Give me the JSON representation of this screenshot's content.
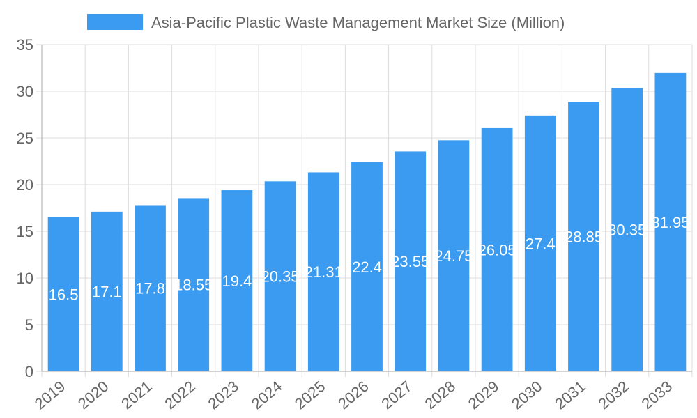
{
  "chart_data": {
    "type": "bar",
    "title": "",
    "xlabel": "",
    "ylabel": "",
    "legend": {
      "position": "top",
      "entries": [
        "Asia-Pacific Plastic Waste Management Market Size (Million)"
      ]
    },
    "categories": [
      "2019",
      "2020",
      "2021",
      "2022",
      "2023",
      "2024",
      "2025",
      "2026",
      "2027",
      "2028",
      "2029",
      "2030",
      "2031",
      "2032",
      "2033"
    ],
    "series": [
      {
        "name": "Asia-Pacific Plastic Waste Management Market Size (Million)",
        "values": [
          16.5,
          17.1,
          17.8,
          18.55,
          19.4,
          20.35,
          21.31,
          22.4,
          23.55,
          24.75,
          26.05,
          27.4,
          28.85,
          30.35,
          31.95
        ],
        "color": "#3a9bf0"
      }
    ],
    "data_labels": [
      "16.5",
      "17.1",
      "17.8",
      "18.55",
      "19.4",
      "20.35",
      "21.31",
      "22.4",
      "23.55",
      "24.75",
      "26.05",
      "27.4",
      "28.85",
      "30.35",
      "31.95"
    ],
    "ylim": [
      0,
      35
    ],
    "yticks": [
      "0",
      "5",
      "10",
      "15",
      "20",
      "25",
      "30",
      "35"
    ],
    "grid": true
  }
}
